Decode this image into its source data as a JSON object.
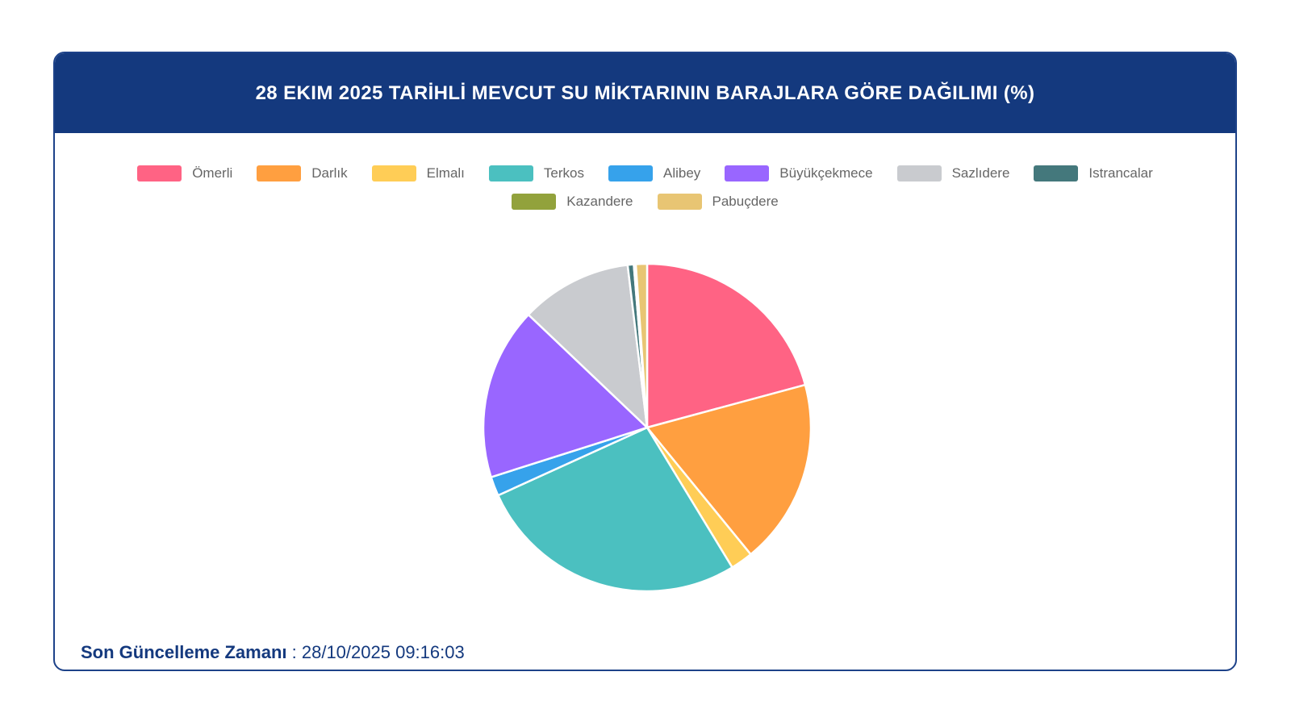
{
  "header": {
    "title": "28 EKIM 2025 TARİHLİ MEVCUT SU MİKTARININ BARAJLARA GÖRE DAĞILIMI (%)"
  },
  "footer": {
    "label": "Son Güncelleme Zamanı",
    "separator": " : ",
    "value": "28/10/2025 09:16:03"
  },
  "colors": {
    "header_bg": "#14397e",
    "card_border": "#1d4289",
    "legend_text": "#666666",
    "footer_text": "#14397e",
    "slice_border": "#ffffff"
  },
  "chart_data": {
    "type": "pie",
    "title": "28 EKIM 2025 TARİHLİ MEVCUT SU MİKTARININ BARAJLARA GÖRE DAĞILIMI (%)",
    "unit": "%",
    "start_angle_deg": 0,
    "direction": "clockwise",
    "legend_position": "top",
    "legend_rows": [
      8,
      2
    ],
    "series": [
      {
        "id": "omerli",
        "label": "Ömerli",
        "value": 20.8,
        "color": "#FF6384"
      },
      {
        "id": "darlik",
        "label": "Darlık",
        "value": 18.3,
        "color": "#FF9F40"
      },
      {
        "id": "elmali",
        "label": "Elmalı",
        "value": 2.2,
        "color": "#FFCD56"
      },
      {
        "id": "terkos",
        "label": "Terkos",
        "value": 26.9,
        "color": "#4BC0C0"
      },
      {
        "id": "alibey",
        "label": "Alibey",
        "value": 1.9,
        "color": "#36A2EB"
      },
      {
        "id": "buyukcekmece",
        "label": "Büyükçekmece",
        "value": 17.0,
        "color": "#9966FF"
      },
      {
        "id": "sazlidere",
        "label": "Sazlıdere",
        "value": 11.0,
        "color": "#C9CBCF"
      },
      {
        "id": "istrancalar",
        "label": "Istrancalar",
        "value": 0.6,
        "color": "#44787C"
      },
      {
        "id": "kazandere",
        "label": "Kazandere",
        "value": 0.2,
        "color": "#92A23C"
      },
      {
        "id": "pabucdere",
        "label": "Pabuçdere",
        "value": 1.1,
        "color": "#E8C573"
      }
    ]
  }
}
